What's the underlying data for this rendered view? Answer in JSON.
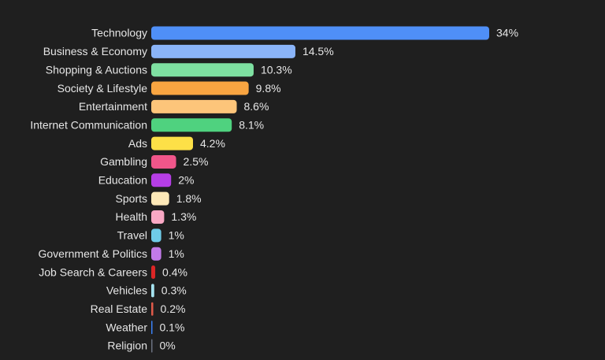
{
  "chart_data": {
    "type": "bar",
    "orientation": "horizontal",
    "categories": [
      "Technology",
      "Business & Economy",
      "Shopping & Auctions",
      "Society & Lifestyle",
      "Entertainment",
      "Internet Communication",
      "Ads",
      "Gambling",
      "Education",
      "Sports",
      "Health",
      "Travel",
      "Government & Politics",
      "Job Search & Careers",
      "Vehicles",
      "Real Estate",
      "Weather",
      "Religion"
    ],
    "values": [
      34,
      14.5,
      10.3,
      9.8,
      8.6,
      8.1,
      4.2,
      2.5,
      2,
      1.8,
      1.3,
      1,
      1,
      0.4,
      0.3,
      0.2,
      0.1,
      0
    ],
    "value_labels": [
      "34%",
      "14.5%",
      "10.3%",
      "9.8%",
      "8.6%",
      "8.1%",
      "4.2%",
      "2.5%",
      "2%",
      "1.8%",
      "1.3%",
      "1%",
      "1%",
      "0.4%",
      "0.3%",
      "0.2%",
      "0.1%",
      "0%"
    ],
    "colors": [
      "#4f8ff7",
      "#8ab4f8",
      "#7ee0a1",
      "#f9a541",
      "#fdc57a",
      "#4fd27f",
      "#fde047",
      "#f0568a",
      "#b63ee6",
      "#fde9b8",
      "#f9a8c4",
      "#6fcbe8",
      "#c27ae8",
      "#dc2626",
      "#a5e3f0",
      "#e05a4a",
      "#3b82f6",
      "#6b7280"
    ]
  }
}
